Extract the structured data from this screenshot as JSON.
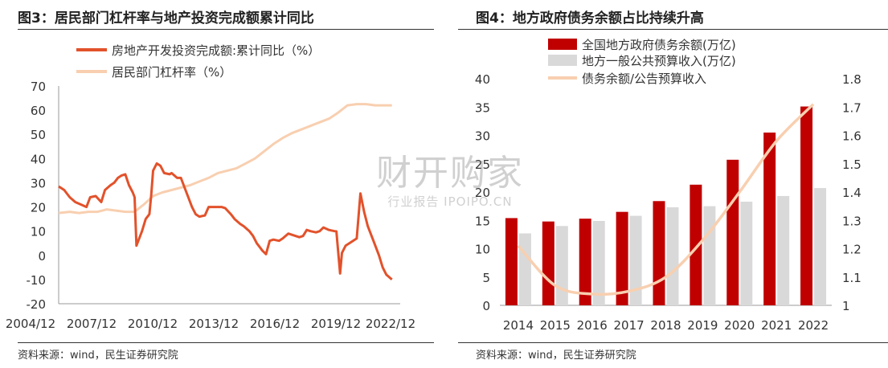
{
  "figures": [
    {
      "title": "图3：居民部门杠杆率与地产投资完成额累计同比",
      "source": "资料来源：wind，民生证券研究院"
    },
    {
      "title": "图4：地方政府债务余额占比持续升高",
      "source": "资料来源：wind，民生证券研究院"
    }
  ],
  "watermark": {
    "logo": "财开购家",
    "sub": "行业报告 IPOIPO.CN"
  },
  "chart_data": [
    {
      "type": "line",
      "title": "图3：居民部门杠杆率与地产投资完成额累计同比",
      "x_ticks": [
        "2004/12",
        "2007/12",
        "2010/12",
        "2013/12",
        "2016/12",
        "2019/12",
        "2022/12"
      ],
      "x_range": [
        2004.9,
        2023.0
      ],
      "ylim": [
        -20,
        70
      ],
      "y_ticks": [
        -20,
        -10,
        0,
        10,
        20,
        30,
        40,
        50,
        60,
        70
      ],
      "legend_position": "top",
      "series": [
        {
          "name": "房地产开发投资完成额:累计同比（%）",
          "color": "#e2522b",
          "points": [
            [
              2004.9,
              28.5
            ],
            [
              2005.2,
              27
            ],
            [
              2005.5,
              24
            ],
            [
              2005.8,
              22
            ],
            [
              2006.1,
              21
            ],
            [
              2006.4,
              20
            ],
            [
              2006.6,
              24
            ],
            [
              2006.9,
              24.5
            ],
            [
              2007.2,
              22
            ],
            [
              2007.4,
              27
            ],
            [
              2007.7,
              29
            ],
            [
              2007.9,
              30
            ],
            [
              2008.1,
              32
            ],
            [
              2008.3,
              33
            ],
            [
              2008.5,
              33.5
            ],
            [
              2008.7,
              29
            ],
            [
              2008.9,
              26
            ],
            [
              2009.0,
              24
            ],
            [
              2009.1,
              4
            ],
            [
              2009.4,
              10
            ],
            [
              2009.6,
              15
            ],
            [
              2009.8,
              17
            ],
            [
              2009.9,
              25
            ],
            [
              2010.0,
              35
            ],
            [
              2010.2,
              38
            ],
            [
              2010.4,
              37
            ],
            [
              2010.6,
              34
            ],
            [
              2010.9,
              33.5
            ],
            [
              2011.0,
              34
            ],
            [
              2011.3,
              32
            ],
            [
              2011.5,
              32
            ],
            [
              2011.7,
              28
            ],
            [
              2011.9,
              24
            ],
            [
              2012.1,
              20
            ],
            [
              2012.3,
              17
            ],
            [
              2012.5,
              16
            ],
            [
              2012.8,
              16.5
            ],
            [
              2013.0,
              20
            ],
            [
              2013.3,
              20
            ],
            [
              2013.7,
              20
            ],
            [
              2013.9,
              19.5
            ],
            [
              2014.2,
              17
            ],
            [
              2014.4,
              15
            ],
            [
              2014.7,
              13
            ],
            [
              2014.9,
              12
            ],
            [
              2015.2,
              10
            ],
            [
              2015.4,
              8
            ],
            [
              2015.6,
              5
            ],
            [
              2015.8,
              3
            ],
            [
              2015.9,
              2
            ],
            [
              2016.1,
              0.5
            ],
            [
              2016.3,
              6
            ],
            [
              2016.5,
              6.5
            ],
            [
              2016.8,
              6
            ],
            [
              2017.0,
              7
            ],
            [
              2017.3,
              9
            ],
            [
              2017.5,
              8.5
            ],
            [
              2017.9,
              7.5
            ],
            [
              2018.1,
              8
            ],
            [
              2018.3,
              10.5
            ],
            [
              2018.5,
              10
            ],
            [
              2018.8,
              9.5
            ],
            [
              2019.0,
              10
            ],
            [
              2019.2,
              11.5
            ],
            [
              2019.5,
              10.5
            ],
            [
              2019.8,
              10
            ],
            [
              2019.9,
              9.9
            ],
            [
              2020.1,
              -7.5
            ],
            [
              2020.2,
              1
            ],
            [
              2020.4,
              4
            ],
            [
              2020.6,
              5
            ],
            [
              2020.8,
              6
            ],
            [
              2021.0,
              7
            ],
            [
              2021.2,
              25.6
            ],
            [
              2021.4,
              18
            ],
            [
              2021.6,
              12
            ],
            [
              2021.9,
              6
            ],
            [
              2022.2,
              0
            ],
            [
              2022.4,
              -5
            ],
            [
              2022.6,
              -8
            ],
            [
              2022.9,
              -10
            ]
          ]
        },
        {
          "name": "居民部门杠杆率（%）",
          "color": "#f8cfb0",
          "points": [
            [
              2004.9,
              17.5
            ],
            [
              2005.5,
              18
            ],
            [
              2006.0,
              17.5
            ],
            [
              2006.5,
              18
            ],
            [
              2007.0,
              18
            ],
            [
              2007.5,
              19
            ],
            [
              2008.0,
              18.5
            ],
            [
              2008.5,
              18
            ],
            [
              2009.0,
              18
            ],
            [
              2009.5,
              21
            ],
            [
              2010.0,
              24.5
            ],
            [
              2010.5,
              26
            ],
            [
              2011.0,
              27
            ],
            [
              2011.5,
              28
            ],
            [
              2012.0,
              29
            ],
            [
              2012.5,
              30.5
            ],
            [
              2013.0,
              32
            ],
            [
              2013.5,
              34
            ],
            [
              2014.0,
              35
            ],
            [
              2014.5,
              36
            ],
            [
              2015.0,
              38
            ],
            [
              2015.5,
              40
            ],
            [
              2016.0,
              43
            ],
            [
              2016.5,
              46
            ],
            [
              2017.0,
              48.5
            ],
            [
              2017.5,
              50.5
            ],
            [
              2018.0,
              52
            ],
            [
              2018.5,
              53.5
            ],
            [
              2019.0,
              55
            ],
            [
              2019.5,
              56.5
            ],
            [
              2020.0,
              59
            ],
            [
              2020.5,
              62
            ],
            [
              2021.0,
              62.5
            ],
            [
              2021.5,
              62.5
            ],
            [
              2022.0,
              62
            ],
            [
              2022.5,
              62
            ],
            [
              2022.9,
              62
            ]
          ]
        }
      ]
    },
    {
      "type": "bar",
      "title": "图4：地方政府债务余额占比持续升高",
      "categories": [
        "2014",
        "2015",
        "2016",
        "2017",
        "2018",
        "2019",
        "2020",
        "2021",
        "2022"
      ],
      "ylim": [
        0,
        40
      ],
      "y_ticks": [
        0,
        5,
        10,
        15,
        20,
        25,
        30,
        35,
        40
      ],
      "y2lim": [
        1.0,
        1.8
      ],
      "y2_ticks": [
        "1",
        "1.1",
        "1.2",
        "1.3",
        "1.4",
        "1.5",
        "1.6",
        "1.7",
        "1.8"
      ],
      "legend_position": "top",
      "series": [
        {
          "name": "全国地方政府债务余额(万亿)",
          "color": "#c00000",
          "type": "bar",
          "values": [
            15.4,
            14.8,
            15.3,
            16.5,
            18.4,
            21.3,
            25.7,
            30.5,
            35.1
          ]
        },
        {
          "name": "地方一般公共预算收入(万亿)",
          "color": "#d9d9d9",
          "type": "bar",
          "values": [
            12.7,
            14.0,
            14.9,
            15.8,
            17.3,
            17.5,
            18.3,
            19.3,
            20.7
          ]
        },
        {
          "name": "债务余额/公告预算收入",
          "color": "#f8cfb0",
          "type": "line",
          "axis": "right",
          "values": [
            1.21,
            1.07,
            1.04,
            1.05,
            1.1,
            1.23,
            1.4,
            1.58,
            1.71
          ]
        }
      ]
    }
  ]
}
